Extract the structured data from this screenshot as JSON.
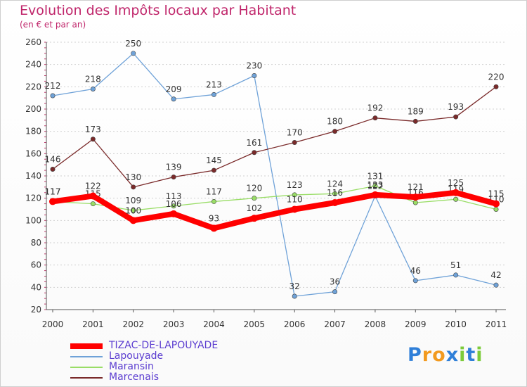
{
  "chart_data": {
    "type": "line",
    "title": "Evolution des Impôts locaux par Habitant",
    "subtitle": "(en € et par an)",
    "xlabel": "",
    "ylabel": "",
    "ylim": [
      20,
      260
    ],
    "yticks": [
      20,
      40,
      60,
      80,
      100,
      120,
      140,
      160,
      180,
      200,
      220,
      240,
      260
    ],
    "categories": [
      "2000",
      "2001",
      "2002",
      "2003",
      "2004",
      "2005",
      "2006",
      "2007",
      "2008",
      "2009",
      "2010",
      "2011"
    ],
    "series": [
      {
        "name": "TIZAC-DE-LAPOUYADE",
        "color": "#ff0000",
        "values": [
          117,
          122,
          100,
          106,
          93,
          102,
          110,
          116,
          123,
          121,
          125,
          115
        ]
      },
      {
        "name": "Lapouyade",
        "color": "#6fa2d8",
        "values": [
          212,
          218,
          250,
          209,
          213,
          230,
          32,
          36,
          122,
          46,
          51,
          42
        ]
      },
      {
        "name": "Maransin",
        "color": "#99dd66",
        "values": [
          117,
          115,
          109,
          113,
          117,
          120,
          123,
          124,
          131,
          116,
          119,
          110
        ]
      },
      {
        "name": "Marcenais",
        "color": "#7a2a2a",
        "values": [
          146,
          173,
          130,
          139,
          145,
          161,
          170,
          180,
          192,
          189,
          193,
          220
        ]
      }
    ]
  },
  "logo": {
    "text": "Proxiti",
    "letters": [
      "P",
      "r",
      "o",
      "x",
      "i",
      "t",
      "i"
    ]
  }
}
